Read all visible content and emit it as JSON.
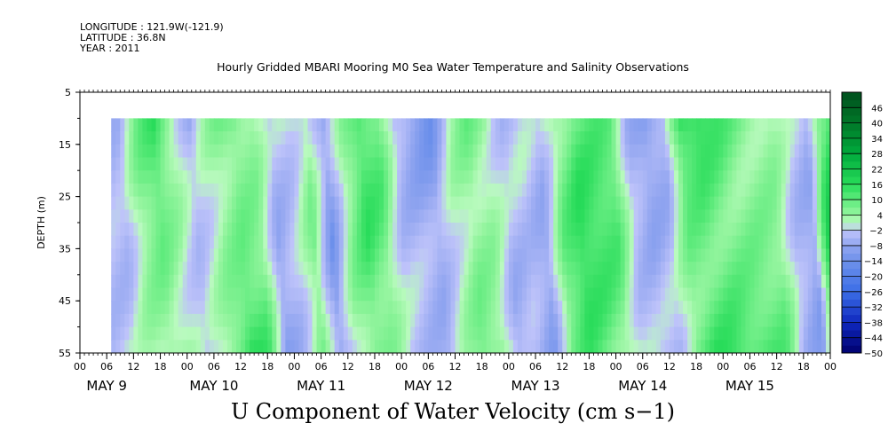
{
  "header": {
    "longitude": "LONGITUDE : 121.9W(-121.9)",
    "latitude": "LATITUDE : 36.8N",
    "year": "YEAR : 2011"
  },
  "chart_data": {
    "type": "heatmap",
    "title": "Hourly Gridded MBARI Mooring M0 Sea Water Temperature and Salinity Observations",
    "bottom_title": "U Component of Water Velocity (cm s−1)",
    "ylabel": "DEPTH (m)",
    "ylim": [
      5,
      55
    ],
    "y_inverted": true,
    "y_ticks": [
      "5",
      "15",
      "25",
      "35",
      "45",
      "55"
    ],
    "x_hour_labels": [
      "00",
      "06",
      "12",
      "18",
      "00",
      "06",
      "12",
      "18",
      "00",
      "06",
      "12",
      "18",
      "00",
      "06",
      "12",
      "18",
      "00",
      "06",
      "12",
      "18",
      "00",
      "06",
      "12",
      "18",
      "00",
      "06",
      "12",
      "18",
      "00"
    ],
    "x_day_labels": [
      "MAY  9",
      "MAY 10",
      "MAY 11",
      "MAY 12",
      "MAY 13",
      "MAY 14",
      "MAY 15"
    ],
    "data_extent": {
      "start_hour": 7,
      "end_hour": 168,
      "depth_min": 10,
      "depth_max": 55
    },
    "colorbar": {
      "tick_labels": [
        "46",
        "40",
        "34",
        "28",
        "22",
        "16",
        "10",
        "4",
        "−2",
        "−8",
        "−14",
        "−20",
        "−26",
        "−32",
        "−38",
        "−44",
        "−50"
      ],
      "range": [
        -50,
        52
      ],
      "step": 3
    },
    "field_profile_u_cm_s": [
      [
        8,
        -4
      ],
      [
        12,
        6
      ],
      [
        16,
        12
      ],
      [
        20,
        4
      ],
      [
        24,
        -6
      ],
      [
        30,
        8
      ],
      [
        34,
        14
      ],
      [
        38,
        10
      ],
      [
        42,
        -8
      ],
      [
        46,
        -3
      ],
      [
        50,
        6
      ],
      [
        54,
        -10
      ],
      [
        58,
        4
      ],
      [
        62,
        12
      ],
      [
        66,
        9
      ],
      [
        70,
        -4
      ],
      [
        74,
        -8
      ],
      [
        78,
        -12
      ],
      [
        82,
        2
      ],
      [
        86,
        10
      ],
      [
        90,
        6
      ],
      [
        94,
        -6
      ],
      [
        98,
        -4
      ],
      [
        102,
        -8
      ],
      [
        106,
        8
      ],
      [
        110,
        14
      ],
      [
        114,
        12
      ],
      [
        118,
        10
      ],
      [
        122,
        -4
      ],
      [
        126,
        -8
      ],
      [
        130,
        -6
      ],
      [
        134,
        14
      ],
      [
        138,
        18
      ],
      [
        142,
        16
      ],
      [
        146,
        12
      ],
      [
        150,
        10
      ],
      [
        154,
        8
      ],
      [
        158,
        -4
      ],
      [
        162,
        -8
      ],
      [
        165,
        14
      ],
      [
        168,
        22
      ]
    ]
  }
}
